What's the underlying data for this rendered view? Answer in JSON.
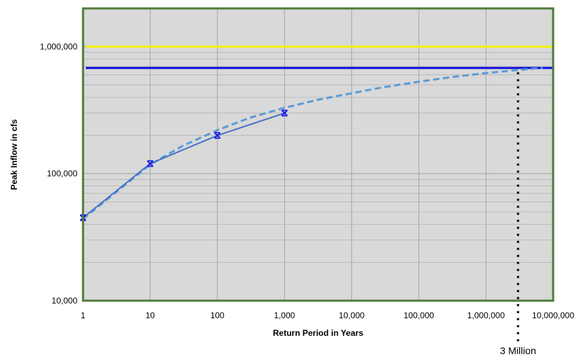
{
  "chart_data": {
    "type": "line",
    "title": "",
    "xlabel": "Return Period in Years",
    "ylabel": "Peak Inflow in cfs",
    "x_scale": "log",
    "y_scale": "log",
    "xlim": [
      1,
      10000000
    ],
    "ylim": [
      10000,
      2000000
    ],
    "grid": true,
    "x_ticks": [
      {
        "value": 1,
        "label": "1"
      },
      {
        "value": 10,
        "label": "10"
      },
      {
        "value": 100,
        "label": "100"
      },
      {
        "value": 1000,
        "label": "1,000"
      },
      {
        "value": 10000,
        "label": "10,000"
      },
      {
        "value": 100000,
        "label": "100,000"
      },
      {
        "value": 1000000,
        "label": "1,000,000"
      },
      {
        "value": 10000000,
        "label": "10,000,000"
      }
    ],
    "y_ticks": [
      {
        "value": 10000,
        "label": "10,000"
      },
      {
        "value": 100000,
        "label": "100,000"
      },
      {
        "value": 1000000,
        "label": "1,000,000"
      }
    ],
    "series": [
      {
        "style": "solid-with-markers",
        "color": "#4472C4",
        "x": [
          1,
          10,
          100,
          1000
        ],
        "y": [
          45000,
          120000,
          200000,
          300000
        ]
      },
      {
        "style": "dashed",
        "color": "#5B9BD5",
        "x": [
          1,
          10,
          30,
          100,
          300,
          1000,
          3000,
          10000,
          30000,
          100000,
          300000,
          1000000,
          3000000,
          7000000
        ],
        "y": [
          44000,
          118000,
          165000,
          220000,
          275000,
          330000,
          380000,
          430000,
          480000,
          530000,
          575000,
          620000,
          655000,
          680000
        ]
      }
    ],
    "reference_lines": [
      {
        "orientation": "horizontal",
        "y": 1000000,
        "color": "#F2F200"
      },
      {
        "orientation": "horizontal",
        "y": 680000,
        "color": "#1010E0"
      },
      {
        "orientation": "vertical",
        "x": 3000000,
        "style": "dotted",
        "color": "#000000"
      }
    ],
    "annotations": [
      {
        "text": "3 Million",
        "x": 3000000
      }
    ],
    "colors": {
      "plot_background": "#D9D9D9",
      "plot_border": "#4F7B3A",
      "gridline": "#A6A6A6"
    }
  }
}
